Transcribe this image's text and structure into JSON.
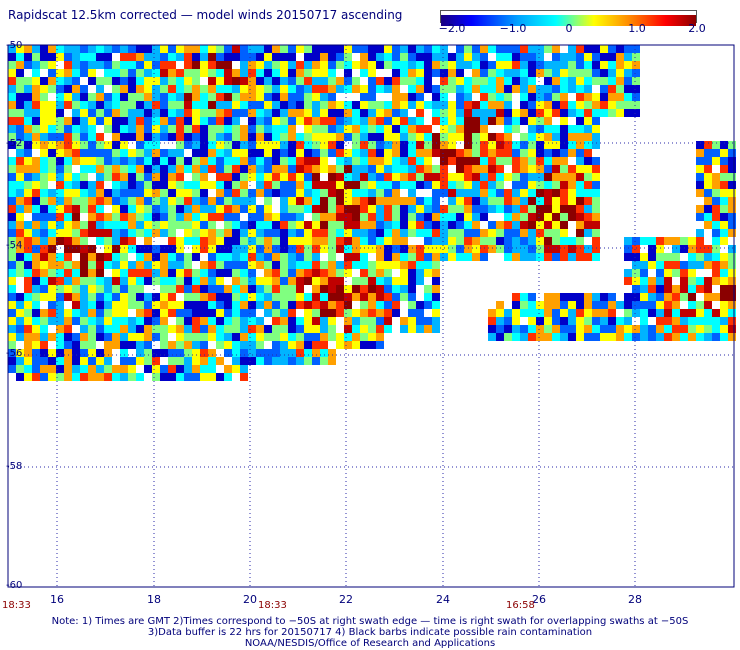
{
  "title": "Rapidscat 12.5km corrected — model winds 20150717 ascending",
  "colorbar": {
    "ticks": [
      "−2.0",
      "−1.0",
      "0",
      "1.0",
      "2.0"
    ],
    "colors": [
      "#1a0080",
      "#0000ff",
      "#00a0ff",
      "#00ffff",
      "#ffff00",
      "#ff8000",
      "#ff0000",
      "#8b0000"
    ]
  },
  "map": {
    "lat_labels": [
      "-50",
      "-52",
      "-54",
      "-56",
      "-58",
      "-60"
    ],
    "lon_labels": [
      "16",
      "18",
      "20",
      "22",
      "24",
      "26",
      "28"
    ],
    "time_labels": [
      "18:33",
      "18:33",
      "16:58"
    ],
    "grid_color": "#2a2aa8"
  },
  "notes": {
    "line1": "Note: 1) Times are GMT 2)Times correspond to −50S at right swath edge — time is right swath for overlapping swaths at −50S",
    "line2": "3)Data buffer is 22 hrs for 20150717 4) Black barbs indicate possible rain contamination",
    "line3": "NOAA/NESDIS/Office of Research and Applications"
  }
}
